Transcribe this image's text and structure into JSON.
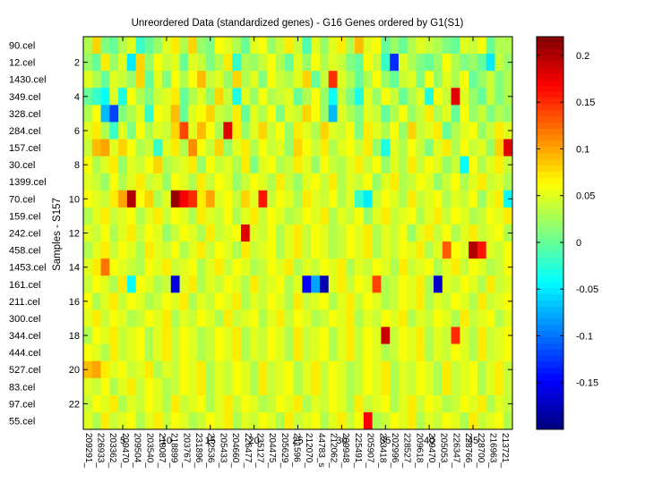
{
  "chart_data": {
    "type": "heatmap",
    "title": "Unreordered Data (standardized genes) - G16 Genes ordered by G1(S1)",
    "ylabel": "Samples - S157",
    "rows": [
      "90.cel",
      "12.cel",
      "1430.cel",
      "349.cel",
      "328.cel",
      "284.cel",
      "157.cel",
      "30.cel",
      "1399.cel",
      "70.cel",
      "159.cel",
      "242.cel",
      "458.cel",
      "1453.cel",
      "161.cel",
      "211.cel",
      "300.cel",
      "344.cel",
      "444.cel",
      "527.cel",
      "83.cel",
      "97.cel",
      "55.cel"
    ],
    "row_ticks": [
      "2",
      "4",
      "6",
      "8",
      "10",
      "12",
      "14",
      "16",
      "18",
      "20",
      "22"
    ],
    "col_ticks": [
      "5",
      "10",
      "15",
      "20",
      "25",
      "30",
      "35",
      "40",
      "45"
    ],
    "col_labels": [
      "209291_",
      "226933_",
      "203362_",
      "209470_",
      "209504_",
      "203540_",
      "218087_",
      "218899_",
      "203767_",
      "231896_",
      "212536_",
      "205433_",
      "204660_",
      "226477_",
      "235127_",
      "204475_",
      "205629_",
      "211596_",
      "212070_",
      "44783_s",
      "212062_",
      "209948_",
      "225491_",
      "205907_",
      "223418_",
      "202996_",
      "228527_",
      "209618_",
      "209470_",
      "205053_",
      "226347_",
      "228766_",
      "228700_",
      "216963_",
      "213721_"
    ],
    "colorbar": {
      "min": -0.2,
      "max": 0.22,
      "ticks": [
        "0.2",
        "0.15",
        "0.1",
        "0.05",
        "0",
        "-0.05",
        "-0.1",
        "-0.15"
      ]
    },
    "grid": "off",
    "n_rows": 23,
    "n_cols": 49,
    "values": [
      [
        0.03,
        0.08,
        0.01,
        0.0,
        0.03,
        0.05,
        -0.02,
        0.0,
        0.02,
        0.05,
        0.07,
        0.03,
        0.08,
        0.02,
        0.01,
        0.06,
        0.05,
        0.03,
        0.0,
        0.05,
        0.06,
        0.02,
        0.04,
        0.07,
        0.04,
        -0.01,
        0.05,
        0.02,
        0.05,
        0.07,
        0.03,
        0.09,
        0.05,
        0.06,
        0.0,
        0.02,
        0.0,
        0.03,
        0.05,
        0.04,
        0.03,
        0.01,
        0.0,
        0.05,
        0.04,
        0.06,
        0.0,
        0.03,
        0.03
      ],
      [
        0.02,
        0.0,
        0.07,
        0.02,
        0.05,
        -0.05,
        0.08,
        0.02,
        0.06,
        0.04,
        0.05,
        0.0,
        0.05,
        0.04,
        0.01,
        0.03,
        0.07,
        -0.02,
        0.03,
        0.02,
        0.04,
        0.06,
        0.03,
        0.0,
        0.05,
        0.02,
        0.06,
        0.03,
        0.05,
        0.04,
        0.01,
        0.0,
        0.06,
        0.04,
        -0.02,
        -0.13,
        0.05,
        0.03,
        0.01,
        0.0,
        0.02,
        0.06,
        0.03,
        0.01,
        0.02,
        0.0,
        -0.05,
        0.04,
        0.02
      ],
      [
        0.05,
        0.03,
        0.0,
        0.05,
        0.04,
        0.02,
        0.08,
        0.0,
        0.05,
        0.01,
        0.06,
        0.03,
        0.06,
        0.09,
        0.04,
        0.05,
        0.02,
        0.08,
        0.03,
        0.05,
        0.01,
        0.06,
        0.04,
        0.03,
        0.05,
        0.08,
        0.0,
        0.04,
        0.15,
        0.05,
        0.03,
        0.0,
        0.03,
        0.06,
        0.02,
        0.0,
        0.04,
        0.05,
        0.01,
        0.06,
        0.02,
        0.05,
        0.03,
        0.06,
        0.0,
        0.02,
        0.04,
        0.01,
        0.03
      ],
      [
        0.0,
        -0.02,
        -0.04,
        0.05,
        -0.03,
        0.06,
        0.03,
        0.01,
        0.04,
        0.05,
        0.07,
        0.0,
        0.03,
        0.05,
        0.02,
        0.08,
        0.04,
        -0.03,
        0.05,
        0.02,
        0.06,
        0.03,
        0.04,
        0.05,
        0.0,
        0.03,
        0.06,
        0.02,
        -0.04,
        0.04,
        0.01,
        -0.03,
        0.05,
        0.02,
        0.06,
        0.04,
        0.0,
        0.03,
        0.05,
        -0.03,
        0.06,
        0.04,
        0.18,
        0.05,
        0.02,
        0.0,
        0.04,
        0.01,
        0.03
      ],
      [
        0.03,
        0.06,
        -0.07,
        -0.12,
        0.01,
        0.03,
        0.05,
        -0.02,
        0.06,
        0.05,
        0.09,
        0.0,
        0.05,
        0.06,
        0.08,
        0.04,
        0.03,
        0.07,
        0.0,
        0.05,
        0.03,
        0.06,
        0.01,
        0.05,
        0.04,
        0.08,
        0.06,
        0.02,
        -0.07,
        0.05,
        0.03,
        0.01,
        0.05,
        0.04,
        0.0,
        0.03,
        0.06,
        0.02,
        0.04,
        0.07,
        0.03,
        0.05,
        0.0,
        0.06,
        0.02,
        0.04,
        0.01,
        0.03,
        0.02
      ],
      [
        0.05,
        0.07,
        0.03,
        -0.02,
        0.05,
        0.01,
        0.06,
        0.03,
        0.05,
        0.04,
        0.08,
        0.14,
        0.05,
        0.09,
        0.06,
        0.03,
        0.18,
        0.07,
        0.02,
        0.05,
        0.08,
        0.04,
        0.06,
        0.02,
        0.07,
        0.05,
        0.03,
        0.08,
        0.05,
        0.04,
        0.06,
        0.01,
        0.07,
        0.05,
        0.03,
        0.06,
        0.02,
        0.08,
        0.04,
        0.05,
        0.07,
        0.0,
        0.03,
        0.05,
        0.06,
        0.02,
        0.04,
        0.07,
        0.05
      ],
      [
        0.04,
        0.09,
        0.1,
        0.05,
        0.08,
        0.06,
        0.03,
        0.04,
        -0.02,
        0.05,
        0.07,
        0.03,
        0.11,
        0.06,
        0.04,
        0.08,
        0.02,
        0.05,
        0.07,
        0.03,
        0.06,
        0.04,
        0.05,
        0.02,
        0.08,
        0.06,
        0.04,
        0.07,
        0.03,
        0.05,
        0.06,
        0.04,
        0.07,
        0.02,
        -0.03,
        0.05,
        0.03,
        0.06,
        0.04,
        0.01,
        0.05,
        0.07,
        0.03,
        0.06,
        0.04,
        0.05,
        0.02,
        0.08,
        0.18
      ],
      [
        0.06,
        0.03,
        0.05,
        0.07,
        0.02,
        0.05,
        0.04,
        0.06,
        0.08,
        0.03,
        0.04,
        0.05,
        0.07,
        0.02,
        0.06,
        0.04,
        0.05,
        0.03,
        0.07,
        0.01,
        0.05,
        0.06,
        0.03,
        0.04,
        0.07,
        0.05,
        0.02,
        0.06,
        0.04,
        0.03,
        0.05,
        0.07,
        0.04,
        0.06,
        0.02,
        0.05,
        0.03,
        0.07,
        0.04,
        0.06,
        0.05,
        0.02,
        0.04,
        -0.04,
        0.06,
        0.03,
        0.05,
        0.07,
        0.04
      ],
      [
        0.05,
        0.04,
        0.02,
        0.06,
        0.03,
        0.05,
        0.07,
        0.04,
        0.05,
        0.02,
        0.06,
        0.05,
        0.03,
        0.07,
        0.04,
        0.06,
        0.05,
        0.02,
        0.04,
        0.06,
        0.05,
        0.03,
        0.07,
        0.04,
        0.02,
        0.05,
        0.06,
        0.04,
        0.07,
        0.03,
        0.05,
        0.04,
        0.06,
        0.02,
        0.05,
        0.07,
        0.03,
        0.04,
        0.06,
        0.05,
        0.02,
        0.04,
        0.06,
        0.03,
        0.05,
        0.07,
        0.04,
        0.05,
        0.03
      ],
      [
        0.06,
        0.05,
        0.04,
        0.07,
        0.1,
        0.2,
        0.06,
        0.08,
        0.03,
        0.05,
        0.21,
        0.17,
        0.15,
        0.07,
        0.1,
        0.05,
        0.06,
        0.04,
        0.08,
        0.05,
        0.16,
        0.04,
        0.06,
        0.05,
        0.03,
        0.07,
        0.05,
        0.04,
        0.06,
        0.03,
        0.05,
        -0.02,
        -0.05,
        0.04,
        0.06,
        0.05,
        0.03,
        0.07,
        0.04,
        0.05,
        0.06,
        0.03,
        0.05,
        0.04,
        0.06,
        0.02,
        0.05,
        0.07,
        -0.04
      ],
      [
        0.03,
        0.05,
        0.07,
        0.04,
        0.05,
        0.06,
        0.03,
        0.05,
        0.07,
        0.04,
        0.06,
        0.05,
        0.03,
        0.07,
        0.05,
        0.04,
        0.06,
        0.03,
        0.05,
        0.07,
        0.04,
        0.06,
        0.05,
        0.03,
        0.04,
        0.06,
        0.05,
        0.07,
        0.03,
        0.05,
        0.04,
        0.06,
        0.02,
        0.05,
        0.07,
        0.04,
        0.05,
        0.06,
        0.03,
        0.05,
        0.07,
        0.04,
        0.06,
        0.05,
        0.03,
        0.04,
        0.06,
        0.05,
        0.07
      ],
      [
        0.05,
        0.04,
        0.06,
        0.03,
        0.05,
        0.07,
        0.04,
        0.06,
        0.05,
        0.02,
        0.04,
        0.06,
        0.05,
        0.03,
        0.07,
        0.04,
        0.05,
        0.06,
        0.18,
        0.05,
        0.04,
        0.06,
        0.03,
        0.05,
        0.07,
        0.04,
        0.06,
        0.05,
        0.03,
        0.04,
        0.06,
        0.05,
        0.07,
        0.03,
        0.05,
        0.04,
        0.06,
        0.02,
        0.05,
        0.07,
        0.04,
        0.06,
        0.03,
        0.05,
        0.07,
        0.04,
        0.05,
        0.06,
        0.03
      ],
      [
        0.03,
        0.05,
        0.07,
        0.04,
        0.06,
        0.05,
        0.03,
        0.07,
        0.05,
        0.04,
        0.06,
        0.03,
        0.05,
        0.07,
        0.04,
        0.06,
        0.05,
        0.03,
        0.07,
        0.04,
        0.05,
        0.06,
        0.03,
        0.05,
        0.07,
        0.04,
        0.06,
        0.05,
        0.03,
        0.04,
        0.06,
        0.05,
        0.07,
        0.03,
        0.05,
        0.04,
        0.06,
        0.05,
        0.07,
        0.03,
        0.05,
        0.13,
        0.06,
        0.05,
        0.2,
        0.16,
        0.05,
        0.04,
        0.06
      ],
      [
        0.05,
        0.07,
        0.12,
        0.06,
        0.05,
        0.04,
        0.03,
        0.06,
        0.05,
        0.07,
        0.04,
        0.05,
        0.06,
        0.03,
        0.05,
        0.07,
        0.04,
        0.06,
        0.05,
        0.03,
        0.04,
        0.06,
        0.05,
        0.07,
        0.03,
        0.05,
        0.04,
        0.06,
        0.05,
        0.07,
        0.03,
        0.05,
        0.04,
        0.06,
        0.05,
        0.03,
        0.07,
        0.04,
        0.05,
        0.06,
        0.03,
        0.05,
        0.07,
        0.04,
        0.06,
        0.05,
        0.03,
        0.04,
        0.06
      ],
      [
        0.04,
        0.06,
        0.05,
        0.03,
        0.07,
        -0.04,
        0.06,
        0.05,
        0.03,
        0.04,
        -0.16,
        0.05,
        0.07,
        0.03,
        0.05,
        0.04,
        0.06,
        0.05,
        0.03,
        0.07,
        0.04,
        0.05,
        0.06,
        0.03,
        0.05,
        -0.15,
        -0.08,
        -0.18,
        0.05,
        0.07,
        0.04,
        0.06,
        0.05,
        0.14,
        0.03,
        0.04,
        0.06,
        0.05,
        0.07,
        0.03,
        -0.17,
        0.05,
        0.04,
        0.06,
        0.05,
        0.03,
        0.07,
        0.04,
        0.05
      ],
      [
        0.06,
        0.03,
        0.05,
        0.07,
        0.04,
        0.06,
        0.05,
        0.03,
        0.04,
        0.06,
        0.05,
        0.07,
        0.03,
        0.05,
        0.04,
        0.06,
        0.05,
        0.07,
        0.03,
        0.05,
        0.04,
        0.06,
        0.05,
        0.03,
        0.07,
        0.04,
        0.05,
        0.06,
        0.03,
        0.05,
        0.07,
        0.04,
        0.06,
        0.05,
        0.03,
        0.04,
        0.06,
        0.05,
        0.07,
        0.03,
        0.05,
        0.04,
        0.06,
        0.05,
        0.03,
        0.07,
        0.04,
        0.05,
        0.06
      ],
      [
        0.05,
        0.07,
        0.04,
        0.06,
        0.05,
        0.03,
        0.04,
        0.06,
        0.05,
        0.07,
        0.03,
        0.05,
        0.04,
        0.06,
        0.05,
        0.03,
        0.07,
        0.04,
        0.05,
        0.06,
        0.03,
        0.05,
        0.07,
        0.04,
        0.06,
        0.05,
        0.03,
        0.04,
        0.06,
        0.05,
        0.07,
        0.03,
        0.05,
        0.04,
        0.06,
        0.05,
        0.07,
        0.03,
        0.05,
        0.04,
        0.06,
        0.05,
        0.03,
        0.07,
        0.04,
        0.05,
        0.06,
        0.03,
        0.05
      ],
      [
        0.03,
        0.06,
        0.05,
        0.07,
        0.04,
        0.05,
        0.06,
        0.03,
        0.05,
        0.07,
        0.04,
        0.06,
        0.05,
        0.03,
        0.04,
        0.06,
        0.05,
        0.07,
        0.03,
        0.05,
        0.04,
        0.06,
        0.05,
        0.03,
        0.07,
        0.04,
        0.05,
        0.06,
        0.03,
        0.05,
        0.07,
        0.04,
        0.06,
        0.05,
        0.19,
        0.04,
        0.06,
        0.05,
        0.07,
        0.03,
        0.05,
        0.04,
        0.15,
        0.05,
        0.03,
        0.07,
        0.04,
        0.05,
        0.06
      ],
      [
        0.06,
        0.05,
        0.03,
        0.07,
        0.04,
        0.05,
        0.06,
        0.03,
        0.05,
        0.07,
        0.04,
        0.06,
        0.05,
        0.03,
        0.04,
        0.06,
        0.05,
        0.07,
        0.03,
        0.05,
        0.04,
        0.06,
        0.05,
        0.03,
        0.07,
        0.04,
        0.05,
        0.06,
        0.03,
        0.05,
        0.07,
        0.04,
        0.06,
        0.05,
        0.03,
        0.04,
        0.06,
        0.05,
        0.07,
        0.03,
        0.05,
        0.04,
        0.06,
        0.05,
        0.03,
        0.07,
        0.04,
        0.05,
        0.06
      ],
      [
        0.09,
        0.1,
        0.07,
        0.05,
        0.06,
        0.04,
        0.05,
        0.07,
        0.03,
        0.05,
        0.04,
        0.06,
        0.05,
        0.07,
        0.03,
        0.05,
        0.04,
        0.06,
        0.05,
        0.03,
        0.07,
        0.04,
        0.05,
        0.06,
        0.03,
        0.05,
        0.07,
        0.04,
        0.06,
        0.05,
        0.03,
        0.04,
        0.06,
        0.05,
        0.07,
        0.03,
        0.05,
        0.04,
        0.06,
        0.05,
        0.03,
        0.07,
        0.04,
        0.05,
        0.06,
        0.03,
        0.05,
        0.07,
        0.04
      ],
      [
        0.05,
        0.04,
        0.06,
        0.03,
        0.05,
        0.07,
        0.04,
        0.06,
        0.05,
        0.03,
        0.04,
        0.06,
        0.05,
        0.07,
        0.03,
        0.05,
        0.04,
        0.06,
        0.05,
        0.03,
        0.07,
        0.04,
        0.05,
        0.06,
        0.03,
        0.05,
        0.07,
        0.04,
        0.06,
        0.05,
        0.03,
        0.04,
        0.06,
        0.05,
        0.07,
        0.03,
        0.05,
        0.04,
        0.06,
        0.05,
        0.03,
        0.07,
        0.04,
        0.05,
        0.06,
        0.03,
        0.05,
        0.07,
        0.04
      ],
      [
        0.04,
        0.06,
        0.05,
        0.07,
        0.03,
        0.05,
        0.04,
        0.06,
        0.05,
        0.03,
        0.07,
        0.04,
        0.05,
        0.06,
        0.03,
        0.05,
        0.07,
        0.04,
        0.06,
        0.05,
        0.03,
        0.04,
        0.06,
        0.05,
        0.07,
        0.03,
        0.05,
        0.04,
        0.06,
        0.05,
        0.03,
        0.07,
        0.04,
        0.05,
        0.06,
        0.03,
        0.05,
        0.07,
        0.04,
        0.06,
        0.05,
        0.03,
        0.04,
        0.06,
        0.05,
        0.07,
        0.03,
        0.05,
        0.04
      ],
      [
        0.05,
        0.03,
        0.07,
        0.04,
        0.05,
        0.06,
        0.03,
        0.05,
        0.07,
        0.04,
        0.06,
        0.05,
        0.03,
        0.04,
        0.06,
        0.05,
        0.07,
        0.03,
        0.05,
        0.04,
        0.06,
        0.05,
        0.03,
        0.07,
        0.04,
        0.05,
        0.06,
        0.03,
        0.05,
        0.07,
        0.04,
        0.06,
        0.17,
        0.03,
        0.04,
        0.06,
        0.05,
        0.07,
        0.03,
        0.05,
        0.04,
        0.06,
        0.05,
        0.03,
        0.07,
        0.04,
        0.05,
        0.06,
        0.03
      ]
    ]
  }
}
